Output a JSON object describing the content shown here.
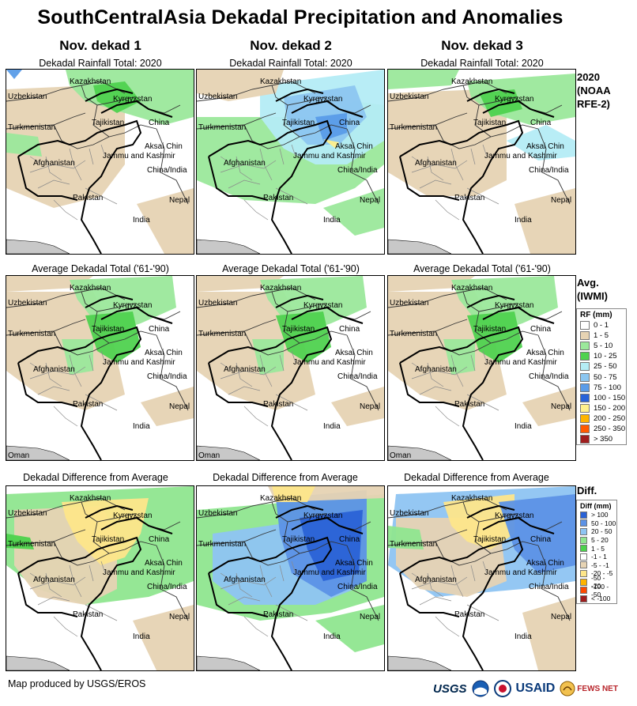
{
  "title": "SouthCentralAsia Dekadal Precipitation and Anomalies",
  "columns": [
    "Nov. dekad 1",
    "Nov. dekad 2",
    "Nov. dekad 3"
  ],
  "rows": [
    {
      "panel_title": "Dekadal Rainfall Total: 2020",
      "label_lines": [
        "2020",
        "(NOAA",
        "RFE-2)"
      ]
    },
    {
      "panel_title": "Average Dekadal Total ('61-'90)",
      "label_lines": [
        "Avg.",
        "(IWMI)"
      ]
    },
    {
      "panel_title": "Dekadal Difference from Average",
      "label_lines": [
        "Diff."
      ]
    }
  ],
  "map_labels": {
    "kazakhstan": "Kazakhstan",
    "uzbekistan": "Uzbekistan",
    "kyrgyzstan": "Kyrgyzstan",
    "turkmenistan": "Turkmenistan",
    "tajikistan": "Tajikistan",
    "china": "China",
    "aksai_chin": "Aksai Chin",
    "jammu_kashmir": "Jammu and Kashmir",
    "afghanistan": "Afghanistan",
    "china_india": "China/India",
    "pakistan": "Pakistan",
    "nepal": "Nepal",
    "india": "India",
    "oman": "Oman"
  },
  "rf_legend": {
    "title": "RF (mm)",
    "items": [
      {
        "label": "0 - 1",
        "color": "#ffffff"
      },
      {
        "label": "1 - 5",
        "color": "#e6d3b3"
      },
      {
        "label": "5 - 10",
        "color": "#9be89b"
      },
      {
        "label": "10 - 25",
        "color": "#4fd24f"
      },
      {
        "label": "25 - 50",
        "color": "#b4ecf5"
      },
      {
        "label": "50 - 75",
        "color": "#8cc6f0"
      },
      {
        "label": "75 - 100",
        "color": "#5a9ce8"
      },
      {
        "label": "100 - 150",
        "color": "#2862d8"
      },
      {
        "label": "150 - 200",
        "color": "#fff08c"
      },
      {
        "label": "200 - 250",
        "color": "#ffb400"
      },
      {
        "label": "250 - 350",
        "color": "#ff5a00"
      },
      {
        "label": "> 350",
        "color": "#a01e1e"
      }
    ]
  },
  "diff_legend": {
    "title": "Diff (mm)",
    "items": [
      {
        "label": "> 100",
        "color": "#2a62d6"
      },
      {
        "label": "50 - 100",
        "color": "#5c92e6"
      },
      {
        "label": "20 - 50",
        "color": "#8ec4f2"
      },
      {
        "label": "5 - 20",
        "color": "#8fe68f"
      },
      {
        "label": "1 - 5",
        "color": "#4cd24c"
      },
      {
        "label": "-1 - 1",
        "color": "#ffffff"
      },
      {
        "label": "-5 - -1",
        "color": "#e6d3b3"
      },
      {
        "label": "-20 - -5",
        "color": "#fde68a"
      },
      {
        "label": "-50 - -20",
        "color": "#ffb400"
      },
      {
        "label": "-100 - -50",
        "color": "#ff4a00"
      },
      {
        "label": "< -100",
        "color": "#a01e1e"
      }
    ]
  },
  "credit": "Map produced by USGS/EROS",
  "logos": {
    "usgs": "USGS",
    "usaid": "USAID",
    "fews": "FEWS NET"
  }
}
